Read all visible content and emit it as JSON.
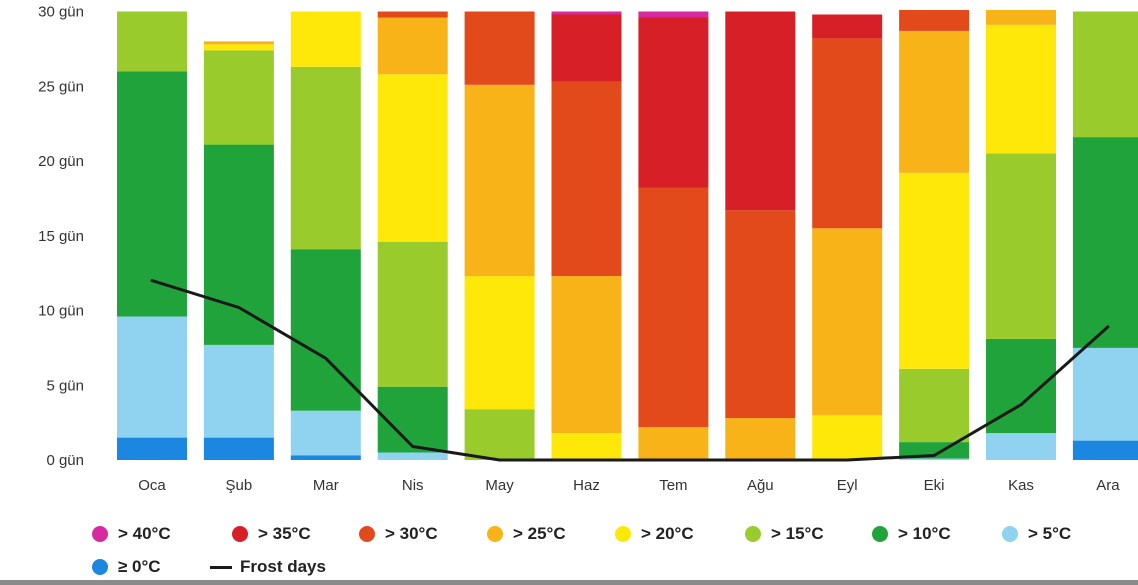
{
  "chart_data": {
    "type": "bar",
    "stacked": true,
    "categories": [
      "Oca",
      "Şub",
      "Mar",
      "Nis",
      "May",
      "Haz",
      "Tem",
      "Ağu",
      "Eyl",
      "Eki",
      "Kas",
      "Ara"
    ],
    "y_ticks": [
      "0 gün",
      "5 gün",
      "10 gün",
      "15 gün",
      "20 gün",
      "25 gün",
      "30 gün"
    ],
    "ylim": [
      0,
      30
    ],
    "series": [
      {
        "name": "≥ 0°C",
        "color": "#1b87e0",
        "values": [
          1.5,
          1.5,
          0.3,
          0,
          0,
          0,
          0,
          0,
          0,
          0,
          0,
          1.3
        ]
      },
      {
        "name": "> 5°C",
        "color": "#8fd3f0",
        "values": [
          8.1,
          6.2,
          3.0,
          0.5,
          0,
          0,
          0,
          0,
          0,
          0.1,
          1.8,
          6.2
        ]
      },
      {
        "name": "> 10°C",
        "color": "#1fa33a",
        "values": [
          16.4,
          13.4,
          10.8,
          4.4,
          0,
          0,
          0,
          0,
          0,
          1.1,
          6.3,
          14.1
        ]
      },
      {
        "name": "> 15°C",
        "color": "#9acb2c",
        "values": [
          4.0,
          6.3,
          12.2,
          9.7,
          3.4,
          0,
          0,
          0,
          0,
          4.9,
          12.4,
          8.4
        ]
      },
      {
        "name": "> 20°C",
        "color": "#fde80a",
        "values": [
          0,
          0.4,
          3.7,
          11.2,
          8.9,
          1.8,
          0,
          0,
          3.0,
          13.1,
          8.6,
          0
        ]
      },
      {
        "name": "> 25°C",
        "color": "#f7b318",
        "values": [
          0,
          0.2,
          0,
          3.8,
          12.8,
          10.5,
          2.2,
          2.8,
          12.5,
          9.5,
          1.0,
          0
        ]
      },
      {
        "name": "> 30°C",
        "color": "#e2491b",
        "values": [
          0,
          0,
          0,
          0.4,
          4.9,
          13.0,
          16.0,
          13.9,
          12.7,
          1.4,
          0,
          0
        ]
      },
      {
        "name": "> 35°C",
        "color": "#d61f26",
        "values": [
          0,
          0,
          0,
          0,
          0,
          4.5,
          11.4,
          13.3,
          1.6,
          0,
          0,
          0
        ]
      },
      {
        "name": "> 40°C",
        "color": "#d52aa0",
        "values": [
          0,
          0,
          0,
          0,
          0,
          0.2,
          0.4,
          0,
          0,
          0,
          0,
          0
        ]
      }
    ],
    "line": {
      "name": "Frost days",
      "color": "#1a1a1a",
      "values": [
        12.0,
        10.2,
        6.8,
        0.9,
        0,
        0,
        0,
        0,
        0,
        0.3,
        3.7,
        8.9
      ]
    },
    "legend_position": "bottom",
    "grid": false
  },
  "legend": {
    "items": [
      {
        "label": "> 40°C",
        "color": "#d52aa0"
      },
      {
        "label": "> 35°C",
        "color": "#d61f26"
      },
      {
        "label": "> 30°C",
        "color": "#e2491b"
      },
      {
        "label": "> 25°C",
        "color": "#f7b318"
      },
      {
        "label": "> 20°C",
        "color": "#fde80a"
      },
      {
        "label": "> 15°C",
        "color": "#9acb2c"
      },
      {
        "label": "> 10°C",
        "color": "#1fa33a"
      },
      {
        "label": "> 5°C",
        "color": "#8fd3f0"
      },
      {
        "label": "≥ 0°C",
        "color": "#1b87e0"
      }
    ],
    "line_label": "Frost days"
  }
}
